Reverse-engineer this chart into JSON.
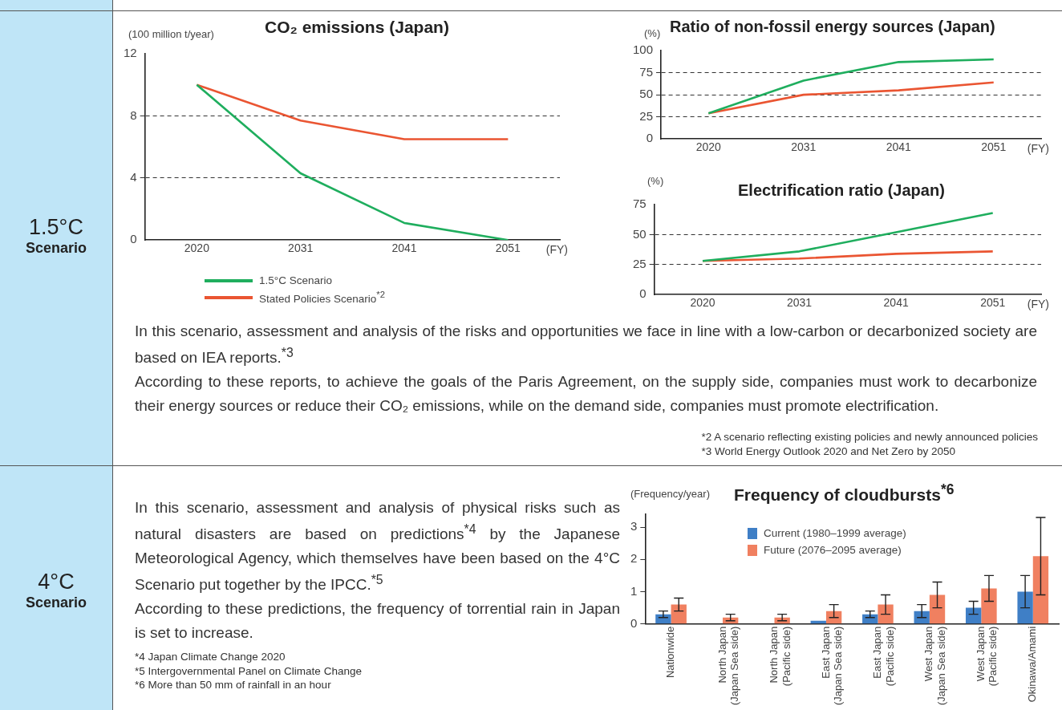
{
  "chart_data": [
    {
      "type": "other",
      "title": "1.5°C",
      "subtitle": "Scenario",
      "annotations": [
        "In this scenario, assessment and analysis of the risks and opportunities we face in line with a low-carbon or decarbonized society are based on IEA reports.$^{*3}$",
        "According to these reports, to achieve the goals of the Paris Agreement, on the supply side, companies must work to decarbonize their energy sources or reduce their CO₂ emissions, while on the demand side, companies must promote electrification.",
        "*2 A scenario reflecting existing policies and newly announced policies",
        "*3 World Energy Outlook 2020 and Net Zero by 2050"
      ]
    },
    {
      "type": "line",
      "title": "CO₂ emissions (Japan)",
      "ylabel": "(100 million t/year)",
      "xlabel": "(FY)",
      "categories": [
        "2020",
        "2031",
        "2041",
        "2051"
      ],
      "ylim": [
        0,
        12
      ],
      "yticks": [
        0,
        4,
        8,
        12
      ],
      "grid": "y",
      "legend": "bottom",
      "series": [
        {
          "name": "1.5°C Scenario",
          "color": "#1fae5e",
          "values": [
            10,
            4.3,
            1.1,
            0
          ]
        },
        {
          "name": "Stated Policies Scenario$^{*2}$",
          "color": "#ea5532",
          "values": [
            10,
            7.7,
            6.5,
            6.5
          ]
        }
      ]
    },
    {
      "type": "line",
      "title": "Ratio of non-fossil energy sources (Japan)",
      "ylabel": "(%)",
      "xlabel": "(FY)",
      "categories": [
        "2020",
        "2031",
        "2041",
        "2051"
      ],
      "ylim": [
        0,
        100
      ],
      "yticks": [
        0,
        25,
        50,
        75,
        100
      ],
      "grid": "y",
      "series": [
        {
          "color": "#1fae5e",
          "values": [
            29,
            66,
            87,
            90
          ]
        },
        {
          "color": "#ea5532",
          "values": [
            29,
            50,
            55,
            64
          ]
        }
      ]
    },
    {
      "type": "line",
      "title": "Electrification ratio (Japan)",
      "ylabel": "(%)",
      "xlabel": "(FY)",
      "categories": [
        "2020",
        "2031",
        "2041",
        "2051"
      ],
      "ylim": [
        0,
        75
      ],
      "yticks": [
        0,
        25,
        50,
        75
      ],
      "grid": "y",
      "series": [
        {
          "color": "#1fae5e",
          "values": [
            28,
            36,
            52,
            68
          ]
        },
        {
          "color": "#ea5532",
          "values": [
            28,
            30,
            34,
            36
          ]
        }
      ]
    },
    {
      "type": "other",
      "title": "4°C",
      "subtitle": "Scenario",
      "annotations": [
        "In this scenario, assessment and analysis of physical risks such as natural disasters are based on predictions$^{*4}$ by the Japanese Meteorological Agency, which themselves have been based on the 4°C Scenario put together by the IPCC.$^{*5}$",
        "According to these predictions, the frequency of torrential rain in Japan is set to increase.",
        "*4 Japan Climate Change 2020",
        "*5 Intergovernmental Panel on Climate Change",
        "*6 More than 50 mm of rainfall in an hour"
      ]
    },
    {
      "type": "bar",
      "title": "Frequency of cloudbursts$^{*6}$",
      "ylabel": "(Frequency/year)",
      "categories": [
        "Nationwide",
        "North Japan (Japan Sea side)",
        "North Japan (Pacific side)",
        "East Japan (Japan Sea side)",
        "East Japan (Pacific side)",
        "West Japan (Japan Sea side)",
        "West Japan (Pacific side)",
        "Okinawa/Amami"
      ],
      "ylim": [
        0,
        3.4
      ],
      "yticks": [
        0,
        1,
        2,
        3
      ],
      "grid": false,
      "legend": "top left",
      "series": [
        {
          "name": "Current (1980–1999 average)",
          "color": "#3f7fc6",
          "values": [
            0.3,
            null,
            null,
            0.1,
            0.3,
            0.4,
            0.5,
            1.0
          ],
          "errors": [
            [
              0.2,
              0.4
            ],
            null,
            null,
            null,
            [
              0.2,
              0.4
            ],
            [
              0.2,
              0.6
            ],
            [
              0.3,
              0.7
            ],
            [
              0.5,
              1.5
            ]
          ]
        },
        {
          "name": "Future (2076–2095 average)",
          "color": "#f08060",
          "values": [
            0.6,
            0.2,
            0.2,
            0.4,
            0.6,
            0.9,
            1.1,
            2.1
          ],
          "errors": [
            [
              0.4,
              0.8
            ],
            [
              0.1,
              0.3
            ],
            [
              0.1,
              0.3
            ],
            [
              0.2,
              0.6
            ],
            [
              0.3,
              0.9
            ],
            [
              0.5,
              1.3
            ],
            [
              0.7,
              1.5
            ],
            [
              0.9,
              3.3
            ]
          ]
        }
      ]
    }
  ]
}
